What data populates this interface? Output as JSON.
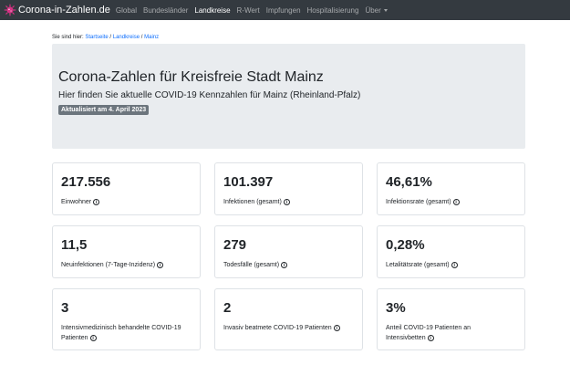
{
  "nav": {
    "brand": "Corona-in-Zahlen.de",
    "items": [
      {
        "label": "Global"
      },
      {
        "label": "Bundesländer"
      },
      {
        "label": "Landkreise"
      },
      {
        "label": "R-Wert"
      },
      {
        "label": "Impfungen"
      },
      {
        "label": "Hospitalisierung"
      },
      {
        "label": "Über"
      }
    ],
    "active": "Landkreise"
  },
  "breadcrumb": {
    "prefix": "Sie sind hier:",
    "items": [
      "Startseite",
      "Landkreise",
      "Mainz"
    ],
    "separator": " / "
  },
  "header": {
    "title": "Corona-Zahlen für Kreisfreie Stadt Mainz",
    "subtitle": "Hier finden Sie aktuelle COVID-19 Kennzahlen für Mainz (Rheinland-Pfalz)",
    "badge": "Aktualisiert am 4. April 2023"
  },
  "stats": [
    {
      "value": "217.556",
      "label": "Einwohner"
    },
    {
      "value": "101.397",
      "label": "Infektionen (gesamt)"
    },
    {
      "value": "46,61%",
      "label": "Infektionsrate (gesamt)"
    },
    {
      "value": "11,5",
      "label": "Neuinfektionen (7-Tage-Inzidenz)"
    },
    {
      "value": "279",
      "label": "Todesfälle (gesamt)"
    },
    {
      "value": "0,28%",
      "label": "Letalitätsrate (gesamt)"
    },
    {
      "value": "3",
      "label": "Intensivmedizinisch behandelte COVID-19 Patienten"
    },
    {
      "value": "2",
      "label": "Invasiv beatmete COVID-19 Patienten"
    },
    {
      "value": "3%",
      "label": "Anteil COVID-19 Patienten an Intensivbetten"
    }
  ],
  "colors": {
    "navbar": "#343a40",
    "jumbotron": "#e9ecef",
    "badge": "#6c757d",
    "link": "#0d6efd",
    "brand_icon": "#d63384"
  },
  "icons": {
    "brand": "virus-icon",
    "info": "info-circle-icon",
    "dropdown": "caret-down-icon"
  }
}
